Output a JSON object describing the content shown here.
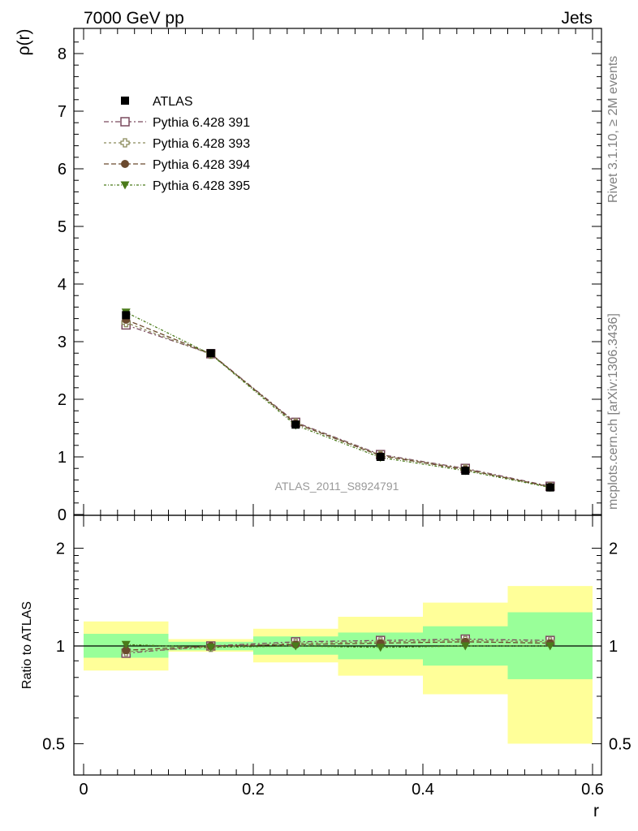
{
  "header": {
    "left": "7000 GeV pp",
    "right": "Jets"
  },
  "side_text": {
    "top": "Rivet 3.1.10, ≥ 2M events",
    "bottom": "mcplots.cern.ch [arXiv:1306.3436]"
  },
  "watermark": "ATLAS_2011_S8924791",
  "colors": {
    "mc391": "#7a4a5e",
    "mc393": "#8a8a5a",
    "mc394": "#6b4a2e",
    "mc395": "#4a7a1a",
    "band_green": "#99ff99",
    "band_yellow": "#ffff99"
  },
  "chart_data": [
    {
      "type": "scatter",
      "title": "",
      "xlabel": "",
      "ylabel": "ρ(r)",
      "xlim": [
        0,
        0.6
      ],
      "ylim": [
        0,
        8.4
      ],
      "yticks": [
        "0",
        "1",
        "2",
        "3",
        "4",
        "5",
        "6",
        "7",
        "8"
      ],
      "legend_position": "top-left",
      "x": [
        0.05,
        0.15,
        0.25,
        0.35,
        0.45,
        0.55
      ],
      "series": [
        {
          "name": "ATLAS",
          "values": [
            3.46,
            2.8,
            1.56,
            1.0,
            0.76,
            0.47
          ]
        },
        {
          "name": "Pythia 6.428 391",
          "values": [
            3.29,
            2.79,
            1.6,
            1.04,
            0.8,
            0.49
          ]
        },
        {
          "name": "Pythia 6.428 393",
          "values": [
            3.33,
            2.78,
            1.59,
            1.03,
            0.79,
            0.48
          ]
        },
        {
          "name": "Pythia 6.428 394",
          "values": [
            3.38,
            2.79,
            1.58,
            1.02,
            0.78,
            0.48
          ]
        },
        {
          "name": "Pythia 6.428 395",
          "values": [
            3.51,
            2.78,
            1.55,
            0.99,
            0.76,
            0.47
          ]
        }
      ]
    },
    {
      "type": "scatter",
      "title": "",
      "xlabel": "r",
      "ylabel": "Ratio to ATLAS",
      "xlim": [
        0,
        0.6
      ],
      "ylim": [
        0.4,
        2.3
      ],
      "log_y": true,
      "xticks": [
        "0",
        "0.2",
        "0.4",
        "0.6"
      ],
      "yticks": [
        "0.5",
        "1",
        "2"
      ],
      "bins": [
        [
          0,
          0.1
        ],
        [
          0.1,
          0.2
        ],
        [
          0.2,
          0.3
        ],
        [
          0.3,
          0.4
        ],
        [
          0.4,
          0.5
        ],
        [
          0.5,
          0.6
        ]
      ],
      "band_green": [
        [
          0.92,
          1.09
        ],
        [
          0.97,
          1.03
        ],
        [
          0.94,
          1.07
        ],
        [
          0.91,
          1.1
        ],
        [
          0.87,
          1.15
        ],
        [
          0.79,
          1.27
        ]
      ],
      "band_yellow": [
        [
          0.84,
          1.19
        ],
        [
          0.96,
          1.05
        ],
        [
          0.89,
          1.13
        ],
        [
          0.81,
          1.23
        ],
        [
          0.71,
          1.36
        ],
        [
          0.5,
          1.53
        ]
      ],
      "x": [
        0.05,
        0.15,
        0.25,
        0.35,
        0.45,
        0.55
      ],
      "series": [
        {
          "name": "Pythia 6.428 391",
          "values": [
            0.95,
            1.0,
            1.03,
            1.04,
            1.05,
            1.04
          ]
        },
        {
          "name": "Pythia 6.428 393",
          "values": [
            0.96,
            0.99,
            1.02,
            1.03,
            1.04,
            1.03
          ]
        },
        {
          "name": "Pythia 6.428 394",
          "values": [
            0.97,
            1.0,
            1.01,
            1.02,
            1.03,
            1.02
          ]
        },
        {
          "name": "Pythia 6.428 395",
          "values": [
            1.01,
            0.99,
            1.0,
            0.99,
            1.0,
            1.0
          ]
        }
      ]
    }
  ]
}
